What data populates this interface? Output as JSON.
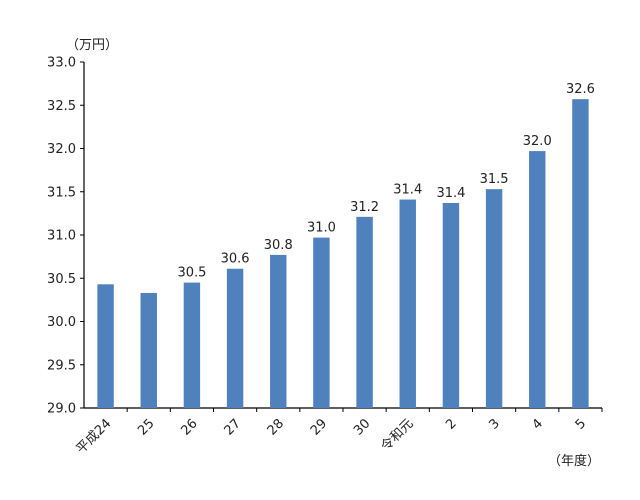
{
  "chart_data": {
    "type": "bar",
    "y_unit": "（万円）",
    "x_unit": "（年度）",
    "categories": [
      "平成24",
      "25",
      "26",
      "27",
      "28",
      "29",
      "30",
      "令和元",
      "2",
      "3",
      "4",
      "5"
    ],
    "values": [
      30.43,
      30.33,
      30.45,
      30.61,
      30.77,
      30.97,
      31.21,
      31.41,
      31.37,
      31.53,
      31.97,
      32.57
    ],
    "data_labels": [
      "",
      "",
      "30.5",
      "30.6",
      "30.8",
      "31.0",
      "31.2",
      "31.4",
      "31.4",
      "31.5",
      "32.0",
      "32.6"
    ],
    "ylim": [
      29.0,
      33.0
    ],
    "yticks": [
      29.0,
      29.5,
      30.0,
      30.5,
      31.0,
      31.5,
      32.0,
      32.5,
      33.0
    ],
    "bar_color": "#4f81bd",
    "grid": false,
    "legend": "none"
  }
}
